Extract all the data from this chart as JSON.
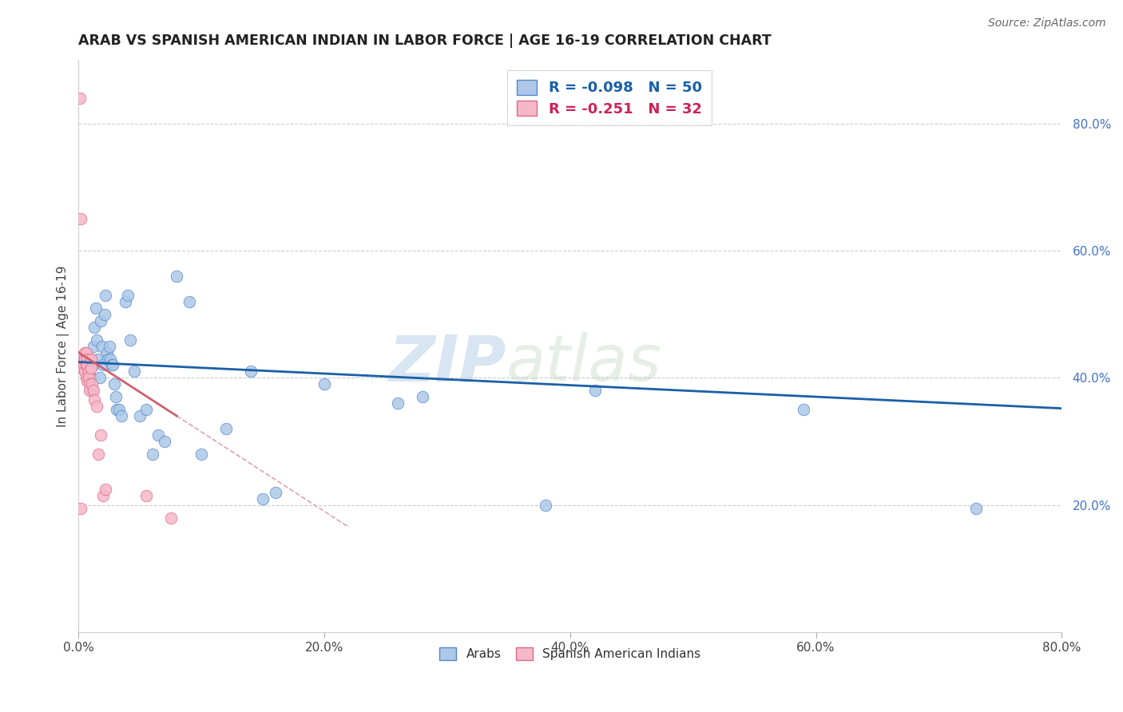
{
  "title": "ARAB VS SPANISH AMERICAN INDIAN IN LABOR FORCE | AGE 16-19 CORRELATION CHART",
  "source": "Source: ZipAtlas.com",
  "ylabel": "In Labor Force | Age 16-19",
  "xlim": [
    0.0,
    0.8
  ],
  "ylim": [
    0.0,
    0.9
  ],
  "xtick_labels": [
    "0.0%",
    "20.0%",
    "40.0%",
    "60.0%",
    "80.0%"
  ],
  "xtick_vals": [
    0.0,
    0.2,
    0.4,
    0.6,
    0.8
  ],
  "ytick_labels_right": [
    "20.0%",
    "40.0%",
    "60.0%",
    "80.0%"
  ],
  "ytick_vals_right": [
    0.2,
    0.4,
    0.6,
    0.8
  ],
  "watermark_zip": "ZIP",
  "watermark_atlas": "atlas",
  "arab_color": "#adc8e8",
  "arab_edge_color": "#5588cc",
  "spanish_color": "#f5b8c8",
  "spanish_edge_color": "#e06888",
  "trend_arab_color": "#1a5fa8",
  "trend_spanish_color": "#d06070",
  "arab_R": -0.098,
  "arab_N": 50,
  "spanish_R": -0.251,
  "spanish_N": 32,
  "arab_points_x": [
    0.008,
    0.01,
    0.01,
    0.011,
    0.012,
    0.012,
    0.013,
    0.014,
    0.015,
    0.016,
    0.017,
    0.018,
    0.019,
    0.02,
    0.021,
    0.022,
    0.023,
    0.024,
    0.025,
    0.026,
    0.027,
    0.028,
    0.029,
    0.03,
    0.031,
    0.033,
    0.035,
    0.038,
    0.04,
    0.042,
    0.045,
    0.05,
    0.055,
    0.06,
    0.065,
    0.07,
    0.08,
    0.09,
    0.1,
    0.12,
    0.14,
    0.15,
    0.16,
    0.2,
    0.26,
    0.28,
    0.38,
    0.42,
    0.59,
    0.73
  ],
  "arab_points_y": [
    0.41,
    0.43,
    0.4,
    0.38,
    0.45,
    0.42,
    0.48,
    0.51,
    0.46,
    0.43,
    0.4,
    0.49,
    0.45,
    0.42,
    0.5,
    0.53,
    0.44,
    0.43,
    0.45,
    0.43,
    0.42,
    0.42,
    0.39,
    0.37,
    0.35,
    0.35,
    0.34,
    0.52,
    0.53,
    0.46,
    0.41,
    0.34,
    0.35,
    0.28,
    0.31,
    0.3,
    0.56,
    0.52,
    0.28,
    0.32,
    0.41,
    0.21,
    0.22,
    0.39,
    0.36,
    0.37,
    0.2,
    0.38,
    0.35,
    0.195
  ],
  "spanish_points_x": [
    0.001,
    0.002,
    0.002,
    0.003,
    0.003,
    0.004,
    0.004,
    0.005,
    0.005,
    0.005,
    0.006,
    0.006,
    0.006,
    0.007,
    0.007,
    0.007,
    0.008,
    0.008,
    0.009,
    0.009,
    0.01,
    0.01,
    0.011,
    0.012,
    0.013,
    0.015,
    0.016,
    0.018,
    0.02,
    0.022,
    0.055,
    0.075
  ],
  "spanish_points_y": [
    0.84,
    0.65,
    0.195,
    0.42,
    0.415,
    0.43,
    0.42,
    0.44,
    0.43,
    0.41,
    0.44,
    0.42,
    0.4,
    0.43,
    0.42,
    0.395,
    0.41,
    0.4,
    0.39,
    0.38,
    0.43,
    0.415,
    0.39,
    0.38,
    0.365,
    0.355,
    0.28,
    0.31,
    0.215,
    0.225,
    0.215,
    0.18
  ]
}
